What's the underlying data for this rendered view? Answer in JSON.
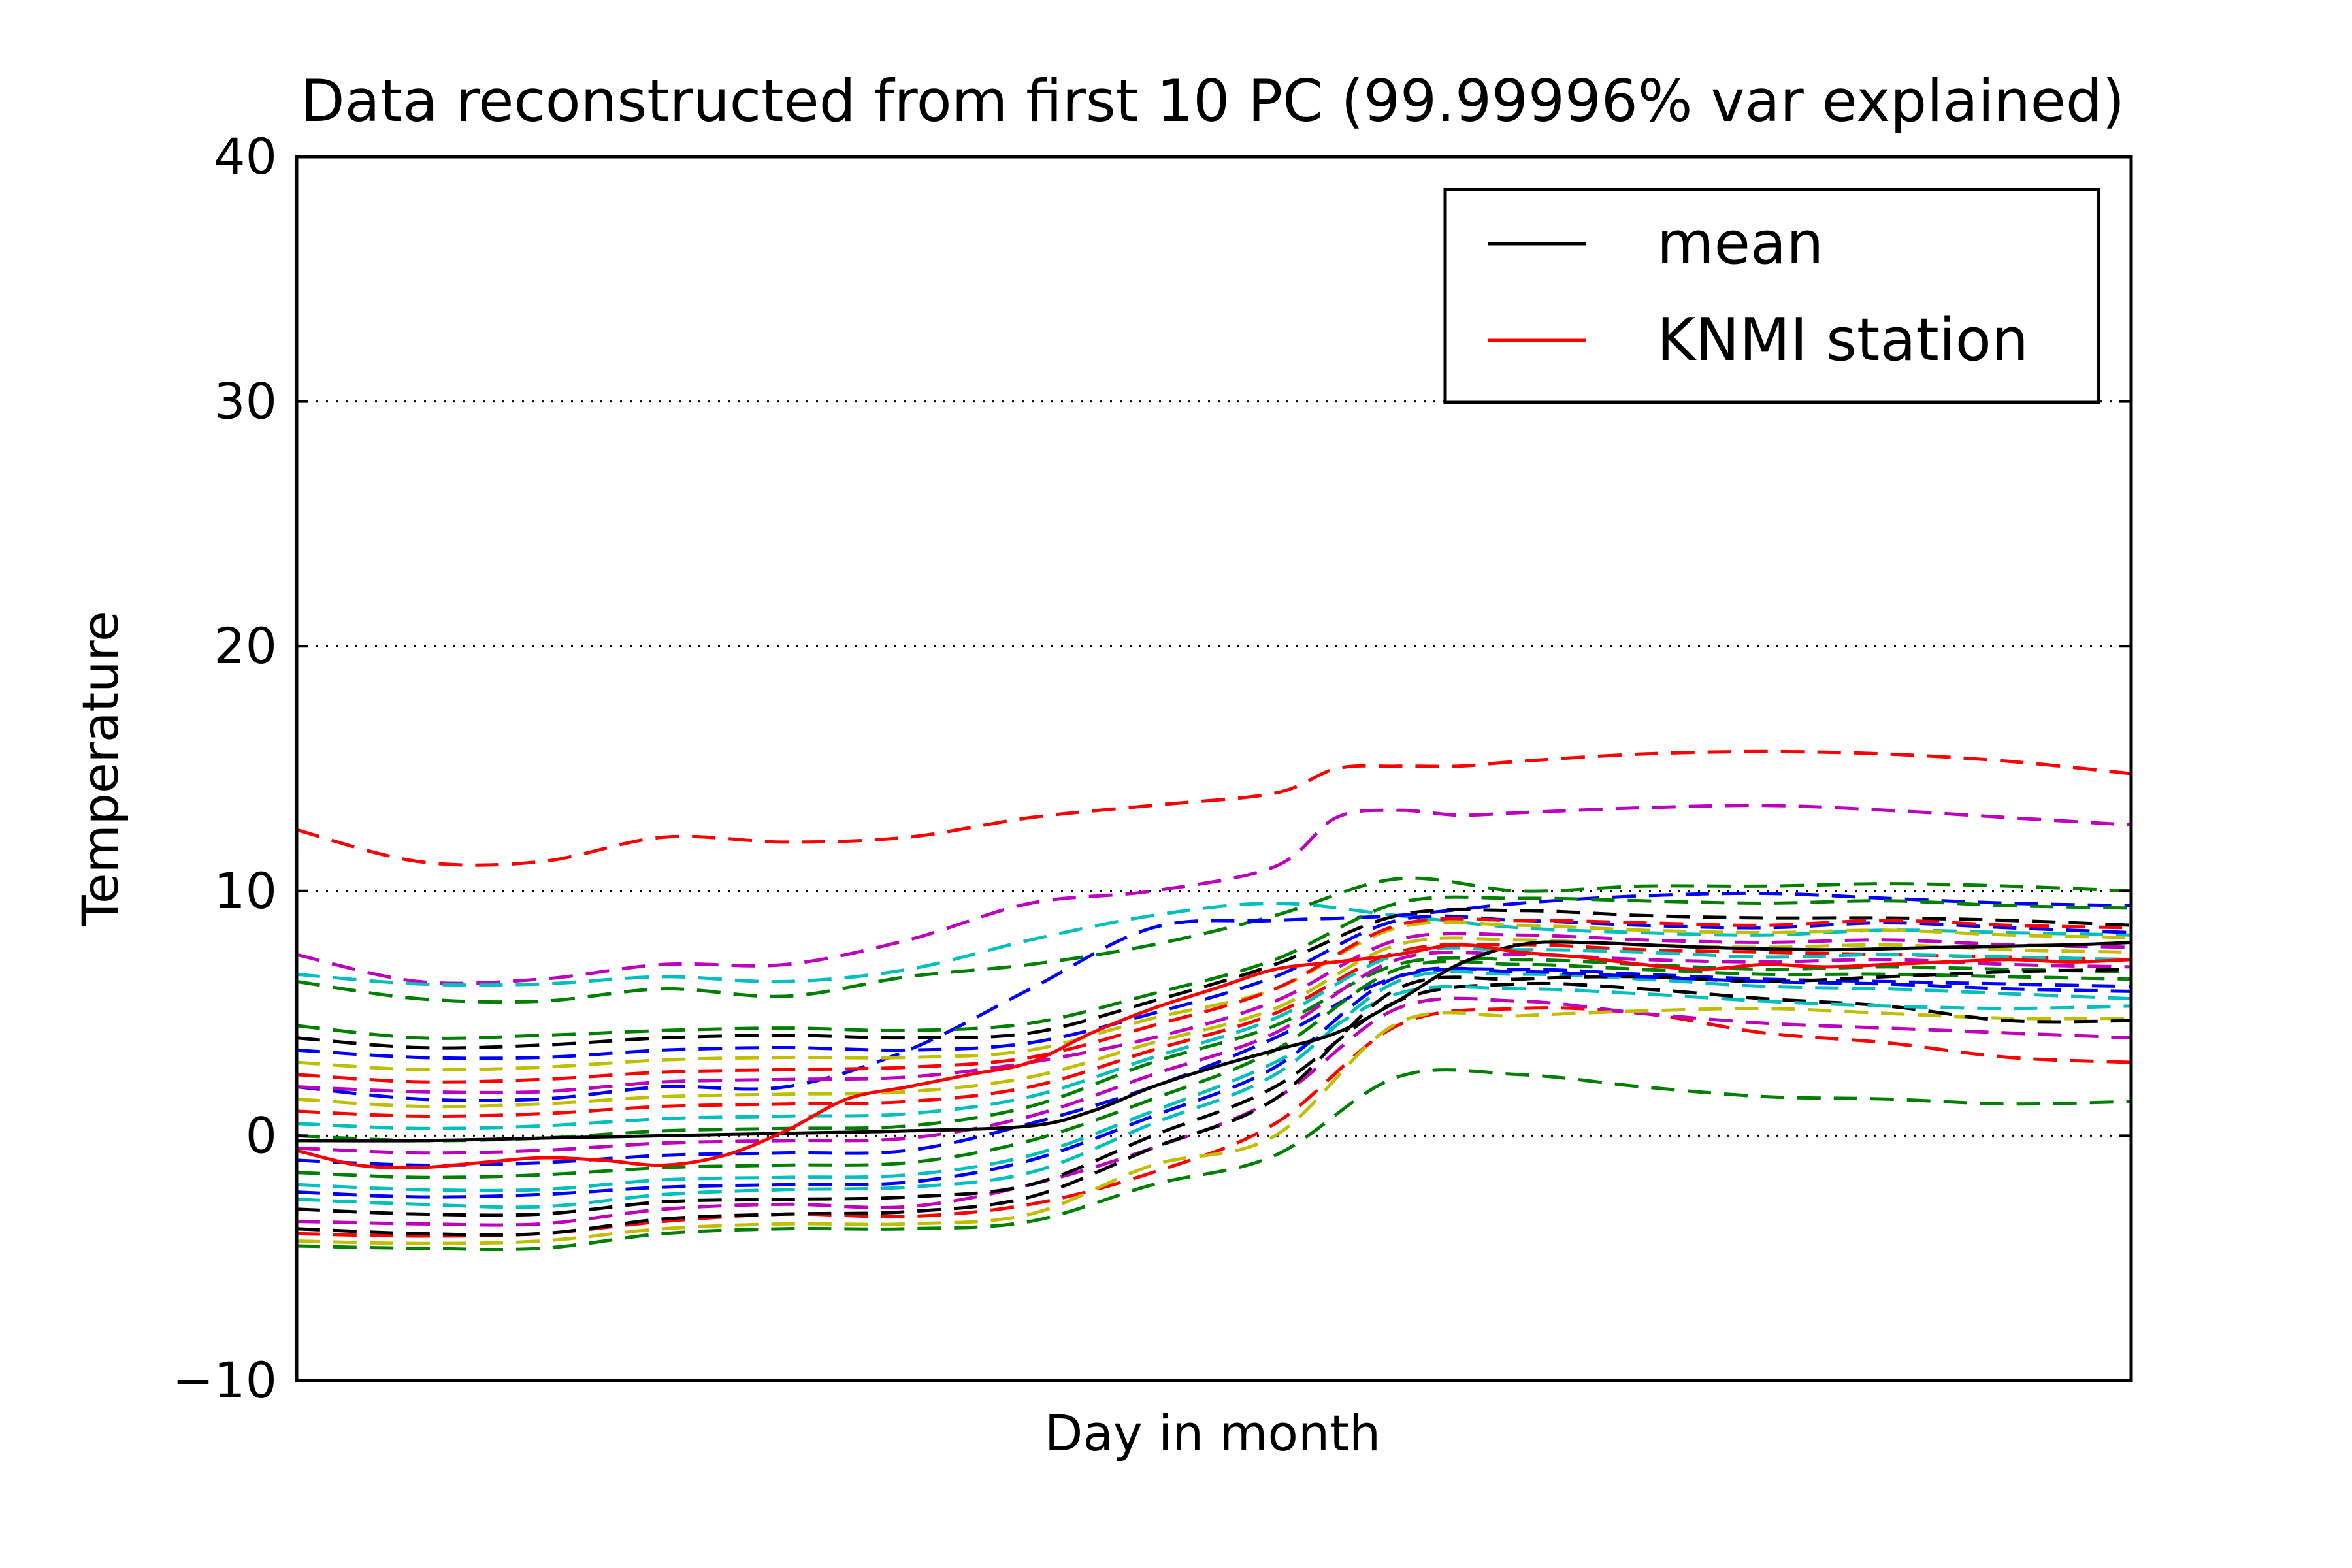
{
  "chart_data": {
    "type": "line",
    "title": "Data reconstructed from first 10 PC (99.99996% var explained)",
    "xlabel": "Day in month",
    "ylabel": "Temperature",
    "ylim": [
      -10,
      40
    ],
    "yticks": [
      "−10",
      "0",
      "10",
      "20",
      "30",
      "40"
    ],
    "xrange": [
      1,
      31
    ],
    "grid": "y-dotted",
    "legend_position": "top-right",
    "legend": [
      {
        "label": "mean",
        "color": "#000000"
      },
      {
        "label": "KNMI station",
        "color": "#ff0000"
      }
    ],
    "series": [
      {
        "name": "mean",
        "style": "solid",
        "color": "#000000",
        "x": [
          1,
          3,
          5,
          7,
          9,
          11,
          13,
          14,
          15,
          16,
          17,
          18,
          19,
          20,
          21,
          22,
          24,
          26,
          28,
          30,
          31
        ],
        "y": [
          -0.2,
          -0.2,
          -0.1,
          0.0,
          0.1,
          0.2,
          0.4,
          1.0,
          2.0,
          2.8,
          3.5,
          4.2,
          5.5,
          7.0,
          7.8,
          7.9,
          7.7,
          7.6,
          7.7,
          7.8,
          7.9
        ]
      },
      {
        "name": "KNMI station",
        "style": "solid",
        "color": "#ff0000",
        "x": [
          1,
          2,
          3,
          4,
          5,
          6,
          7,
          8,
          9,
          10,
          11,
          12,
          13,
          14,
          15,
          16,
          17,
          18,
          19,
          20,
          21,
          22,
          23,
          24,
          25,
          26,
          27,
          28,
          29,
          30,
          31
        ],
        "y": [
          -0.6,
          -1.2,
          -1.3,
          -1.1,
          -0.9,
          -1.0,
          -1.2,
          -0.8,
          0.2,
          1.5,
          2.0,
          2.5,
          3.0,
          4.2,
          5.2,
          6.0,
          6.8,
          7.1,
          7.4,
          7.8,
          7.5,
          7.3,
          7.0,
          6.8,
          7.0,
          6.9,
          7.0,
          7.1,
          7.2,
          7.1,
          7.2
        ]
      },
      {
        "name": "",
        "style": "dashed",
        "color": "#ff0000",
        "x": [
          1,
          3,
          5,
          7,
          9,
          11,
          13,
          15,
          17,
          18,
          19,
          20,
          21,
          23,
          25,
          27,
          29,
          31
        ],
        "y": [
          12.5,
          11.2,
          11.2,
          12.2,
          12.0,
          12.2,
          13.0,
          13.5,
          14.0,
          15.0,
          15.1,
          15.1,
          15.3,
          15.6,
          15.7,
          15.6,
          15.3,
          14.8
        ]
      },
      {
        "name": "",
        "style": "dashed",
        "color": "#bf00bf",
        "x": [
          1,
          3,
          5,
          7,
          9,
          11,
          13,
          15,
          17,
          18,
          19,
          20,
          21,
          23,
          25,
          27,
          29,
          31
        ],
        "y": [
          7.4,
          6.3,
          6.4,
          7.0,
          7.0,
          8.0,
          9.5,
          10.0,
          11.0,
          13.0,
          13.3,
          13.1,
          13.2,
          13.4,
          13.5,
          13.3,
          13.0,
          12.7
        ]
      },
      {
        "name": "",
        "style": "dashed",
        "color": "#00bfbf",
        "x": [
          1,
          3,
          5,
          7,
          9,
          11,
          13,
          15,
          17,
          19,
          21,
          23,
          25,
          27,
          29,
          31
        ],
        "y": [
          6.6,
          6.2,
          6.2,
          6.5,
          6.3,
          6.8,
          8.0,
          9.0,
          9.5,
          9.0,
          8.5,
          8.3,
          8.2,
          8.4,
          8.3,
          8.2
        ]
      },
      {
        "name": "",
        "style": "dashed",
        "color": "#008000",
        "x": [
          1,
          3,
          5,
          7,
          9,
          11,
          13,
          15,
          17,
          19,
          21,
          23,
          25,
          27,
          29,
          31
        ],
        "y": [
          6.3,
          5.6,
          5.5,
          6.0,
          5.7,
          6.5,
          7.0,
          7.8,
          9.0,
          10.5,
          10.0,
          10.2,
          10.2,
          10.3,
          10.2,
          10.0
        ]
      },
      {
        "name": "",
        "style": "dashed",
        "color": "#0000ff",
        "x": [
          1,
          3,
          5,
          7,
          9,
          11,
          13,
          15,
          17,
          19,
          21,
          23,
          25,
          27,
          29,
          31
        ],
        "y": [
          2.0,
          1.5,
          1.5,
          2.0,
          2.0,
          3.5,
          6.0,
          8.5,
          8.8,
          9.0,
          9.5,
          9.8,
          9.9,
          9.7,
          9.5,
          9.4
        ]
      },
      {
        "name": "",
        "style": "dashed",
        "color": "#008000",
        "x": [
          1,
          3,
          5,
          7,
          9,
          11,
          13,
          15,
          17,
          19,
          21,
          23,
          25,
          27,
          29,
          31
        ],
        "y": [
          -4.5,
          -4.6,
          -4.6,
          -4.0,
          -3.8,
          -3.8,
          -3.5,
          -2.0,
          -0.8,
          2.4,
          2.5,
          2.0,
          1.6,
          1.5,
          1.3,
          1.4
        ]
      },
      {
        "name": "",
        "style": "dashed",
        "color": "#ff0000",
        "x": [
          1,
          3,
          5,
          7,
          9,
          11,
          13,
          15,
          17,
          19,
          21,
          23,
          25,
          27,
          29,
          31
        ],
        "y": [
          -4.0,
          -4.1,
          -4.0,
          -3.5,
          -3.2,
          -3.3,
          -2.8,
          -1.5,
          0.5,
          4.5,
          5.2,
          5.0,
          4.2,
          3.8,
          3.2,
          3.0
        ]
      },
      {
        "name": "",
        "style": "dashed",
        "color": "#bf00bf",
        "x": [
          1,
          3,
          5,
          7,
          9,
          11,
          13,
          15,
          17,
          19,
          21,
          23,
          25,
          27,
          29,
          31
        ],
        "y": [
          -3.5,
          -3.6,
          -3.6,
          -3.0,
          -2.8,
          -2.9,
          -2.0,
          -0.5,
          1.5,
          5.2,
          5.5,
          5.0,
          4.6,
          4.4,
          4.2,
          4.0
        ]
      },
      {
        "name": "",
        "style": "dashed",
        "color": "#bfbf00",
        "x": [
          1,
          3,
          5,
          7,
          9,
          11,
          13,
          15,
          17,
          19,
          21,
          23,
          25,
          27,
          29,
          31
        ],
        "y": [
          -4.3,
          -4.4,
          -4.3,
          -3.8,
          -3.6,
          -3.6,
          -3.2,
          -1.2,
          0.0,
          4.6,
          4.9,
          5.1,
          5.2,
          5.0,
          4.8,
          4.8
        ]
      },
      {
        "name": "",
        "style": "dashed",
        "color": "#000000",
        "x": [
          1,
          3,
          5,
          7,
          9,
          11,
          13,
          15,
          17,
          19,
          21,
          23,
          25,
          27,
          29,
          31
        ],
        "y": [
          -3.0,
          -3.2,
          -3.2,
          -2.7,
          -2.6,
          -2.5,
          -2.0,
          0.0,
          2.0,
          5.5,
          6.2,
          6.0,
          5.6,
          5.3,
          4.7,
          4.7
        ]
      },
      {
        "name": "",
        "style": "dashed",
        "color": "#00bfbf",
        "x": [
          1,
          3,
          5,
          7,
          9,
          11,
          13,
          15,
          17,
          19,
          21,
          23,
          25,
          27,
          29,
          31
        ],
        "y": [
          -2.0,
          -2.2,
          -2.2,
          -1.8,
          -1.7,
          -1.6,
          -0.8,
          1.0,
          3.0,
          5.8,
          6.0,
          5.8,
          5.5,
          5.3,
          5.2,
          5.3
        ]
      },
      {
        "name": "",
        "style": "dashed",
        "color": "#0000ff",
        "x": [
          1,
          3,
          5,
          7,
          9,
          11,
          13,
          15,
          17,
          19,
          21,
          23,
          25,
          27,
          29,
          31
        ],
        "y": [
          -1.0,
          -1.2,
          -1.1,
          -0.8,
          -0.7,
          -0.6,
          0.5,
          2.0,
          4.0,
          6.5,
          6.8,
          6.6,
          6.4,
          6.3,
          6.2,
          6.1
        ]
      },
      {
        "name": "",
        "style": "dashed",
        "color": "#008000",
        "x": [
          1,
          3,
          5,
          7,
          9,
          11,
          13,
          15,
          17,
          19,
          21,
          23,
          25,
          27,
          29,
          31
        ],
        "y": [
          0.0,
          -0.2,
          -0.1,
          0.2,
          0.3,
          0.4,
          1.2,
          3.0,
          4.5,
          7.0,
          7.2,
          7.0,
          6.8,
          6.9,
          6.8,
          6.7
        ]
      },
      {
        "name": "",
        "style": "dashed",
        "color": "#ff0000",
        "x": [
          1,
          3,
          5,
          7,
          9,
          11,
          13,
          15,
          17,
          19,
          21,
          23,
          25,
          27,
          29,
          31
        ],
        "y": [
          1.0,
          0.8,
          0.9,
          1.2,
          1.3,
          1.4,
          2.0,
          3.5,
          5.0,
          7.5,
          7.8,
          7.6,
          7.5,
          7.4,
          7.3,
          7.2
        ]
      },
      {
        "name": "",
        "style": "dashed",
        "color": "#bf00bf",
        "x": [
          1,
          3,
          5,
          7,
          9,
          11,
          13,
          15,
          17,
          19,
          21,
          23,
          25,
          27,
          29,
          31
        ],
        "y": [
          2.0,
          1.8,
          1.8,
          2.2,
          2.3,
          2.4,
          3.0,
          4.0,
          5.5,
          8.0,
          8.2,
          8.0,
          7.9,
          8.0,
          7.8,
          7.7
        ]
      },
      {
        "name": "",
        "style": "dashed",
        "color": "#bfbf00",
        "x": [
          1,
          3,
          5,
          7,
          9,
          11,
          13,
          15,
          17,
          19,
          21,
          23,
          25,
          27,
          29,
          31
        ],
        "y": [
          3.0,
          2.7,
          2.8,
          3.1,
          3.2,
          3.2,
          3.5,
          4.8,
          6.0,
          8.5,
          8.6,
          8.4,
          8.3,
          8.4,
          8.2,
          8.1
        ]
      },
      {
        "name": "",
        "style": "dashed",
        "color": "#000000",
        "x": [
          1,
          3,
          5,
          7,
          9,
          11,
          13,
          15,
          17,
          19,
          21,
          23,
          25,
          27,
          29,
          31
        ],
        "y": [
          4.0,
          3.6,
          3.7,
          4.0,
          4.1,
          4.0,
          4.2,
          5.5,
          7.0,
          9.0,
          9.2,
          9.0,
          8.9,
          8.9,
          8.8,
          8.6
        ]
      },
      {
        "name": "",
        "style": "dashed",
        "color": "#00bfbf",
        "x": [
          1,
          3,
          5,
          7,
          9,
          11,
          13,
          15,
          17,
          19,
          21,
          23,
          25,
          27,
          29,
          31
        ],
        "y": [
          -2.6,
          -2.8,
          -2.9,
          -2.4,
          -2.2,
          -2.1,
          -1.5,
          0.5,
          2.5,
          6.3,
          6.6,
          6.4,
          6.1,
          6.0,
          5.8,
          5.6
        ]
      },
      {
        "name": "",
        "style": "dashed",
        "color": "#0000ff",
        "x": [
          1,
          3,
          5,
          7,
          9,
          11,
          13,
          15,
          17,
          19,
          21,
          23,
          25,
          27,
          29,
          31
        ],
        "y": [
          3.5,
          3.2,
          3.2,
          3.5,
          3.6,
          3.5,
          3.8,
          5.0,
          6.5,
          8.8,
          8.8,
          8.6,
          8.5,
          8.7,
          8.5,
          8.3
        ]
      },
      {
        "name": "",
        "style": "dashed",
        "color": "#008000",
        "x": [
          1,
          3,
          5,
          7,
          9,
          11,
          13,
          15,
          17,
          19,
          21,
          23,
          25,
          27,
          29,
          31
        ],
        "y": [
          -1.5,
          -1.7,
          -1.6,
          -1.3,
          -1.2,
          -1.1,
          -0.2,
          1.5,
          3.5,
          6.8,
          7.0,
          6.8,
          6.6,
          6.6,
          6.5,
          6.4
        ]
      },
      {
        "name": "",
        "style": "dashed",
        "color": "#ff0000",
        "x": [
          1,
          3,
          5,
          7,
          9,
          11,
          13,
          15,
          17,
          19,
          21,
          23,
          25,
          27,
          29,
          31
        ],
        "y": [
          2.5,
          2.2,
          2.3,
          2.6,
          2.7,
          2.8,
          3.2,
          4.5,
          6.0,
          8.6,
          8.8,
          8.7,
          8.6,
          8.8,
          8.6,
          8.5
        ]
      },
      {
        "name": "",
        "style": "dashed",
        "color": "#bf00bf",
        "x": [
          1,
          3,
          5,
          7,
          9,
          11,
          13,
          15,
          17,
          19,
          21,
          23,
          25,
          27,
          29,
          31
        ],
        "y": [
          -0.5,
          -0.7,
          -0.6,
          -0.3,
          -0.2,
          -0.1,
          0.8,
          2.5,
          4.2,
          7.2,
          7.4,
          7.2,
          7.1,
          7.2,
          7.0,
          6.9
        ]
      },
      {
        "name": "",
        "style": "dashed",
        "color": "#bfbf00",
        "x": [
          1,
          3,
          5,
          7,
          9,
          11,
          13,
          15,
          17,
          19,
          21,
          23,
          25,
          27,
          29,
          31
        ],
        "y": [
          1.5,
          1.2,
          1.3,
          1.6,
          1.7,
          1.8,
          2.4,
          3.8,
          5.2,
          7.8,
          8.0,
          7.8,
          7.7,
          7.8,
          7.6,
          7.5
        ]
      },
      {
        "name": "",
        "style": "dashed",
        "color": "#000000",
        "x": [
          1,
          3,
          5,
          7,
          9,
          11,
          13,
          15,
          17,
          19,
          21,
          23,
          25,
          27,
          29,
          31
        ],
        "y": [
          -3.8,
          -4.0,
          -4.0,
          -3.4,
          -3.2,
          -3.1,
          -2.5,
          -0.5,
          1.5,
          6.0,
          6.4,
          6.5,
          6.3,
          6.5,
          6.7,
          6.8
        ]
      },
      {
        "name": "",
        "style": "dashed",
        "color": "#00bfbf",
        "x": [
          1,
          3,
          5,
          7,
          9,
          11,
          13,
          15,
          17,
          19,
          21,
          23,
          25,
          27,
          29,
          31
        ],
        "y": [
          0.5,
          0.3,
          0.4,
          0.7,
          0.8,
          0.9,
          1.6,
          3.2,
          4.8,
          7.4,
          7.6,
          7.5,
          7.3,
          7.4,
          7.3,
          7.2
        ]
      },
      {
        "name": "",
        "style": "dashed",
        "color": "#0000ff",
        "x": [
          1,
          3,
          5,
          7,
          9,
          11,
          13,
          15,
          17,
          19,
          21,
          23,
          25,
          27,
          29,
          31
        ],
        "y": [
          -2.3,
          -2.5,
          -2.4,
          -2.1,
          -2.0,
          -1.9,
          -1.0,
          0.8,
          2.8,
          6.5,
          6.7,
          6.5,
          6.3,
          6.2,
          6.0,
          5.9
        ]
      },
      {
        "name": "",
        "style": "dashed",
        "color": "#008000",
        "x": [
          1,
          3,
          5,
          7,
          9,
          11,
          13,
          15,
          17,
          19,
          21,
          23,
          25,
          27,
          29,
          31
        ],
        "y": [
          4.5,
          4.0,
          4.1,
          4.3,
          4.4,
          4.3,
          4.6,
          5.8,
          7.2,
          9.5,
          9.7,
          9.6,
          9.5,
          9.6,
          9.4,
          9.3
        ]
      }
    ]
  }
}
